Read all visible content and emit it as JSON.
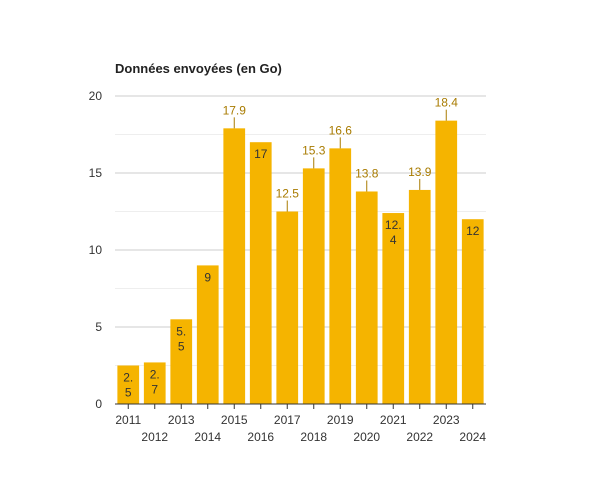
{
  "chart_data": {
    "type": "bar",
    "title": "Données envoyées (en Go)",
    "xlabel": "",
    "ylabel": "",
    "categories": [
      "2011",
      "2012",
      "2013",
      "2014",
      "2015",
      "2016",
      "2017",
      "2018",
      "2019",
      "2020",
      "2021",
      "2022",
      "2023",
      "2024"
    ],
    "values": [
      2.5,
      2.7,
      5.5,
      9,
      17.9,
      17,
      12.5,
      15.3,
      16.6,
      13.8,
      12.4,
      13.9,
      18.4,
      12
    ],
    "value_labels": [
      "2.\n5",
      "2.\n7",
      "5.\n5",
      "9",
      "17.9",
      "17",
      "12.5",
      "15.3",
      "16.6",
      "13.8",
      "12.\n4",
      "13.9",
      "18.4",
      "12"
    ],
    "label_outside": [
      false,
      false,
      false,
      false,
      true,
      false,
      true,
      true,
      true,
      true,
      false,
      true,
      true,
      false
    ],
    "ylim": [
      0,
      20
    ],
    "yticks": [
      0,
      5,
      10,
      15,
      20
    ],
    "grid": true,
    "colors": {
      "bar": "#f5b400",
      "label_outside": "#a87b00",
      "label_inside": "#333333",
      "grid_major": "#cccccc",
      "grid_minor": "#eeeeee",
      "axis": "#333333"
    }
  }
}
